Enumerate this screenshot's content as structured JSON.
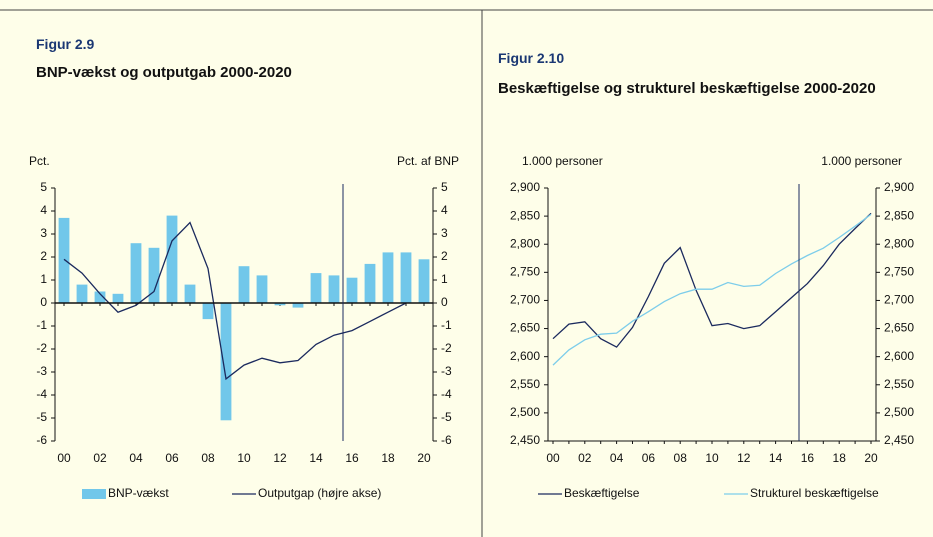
{
  "chart_data": [
    {
      "type": "bar_line",
      "figure": "Figur 2.9",
      "title": "BNP-vækst og outputgab 2000-2020",
      "y_label": "Pct.",
      "y2_label": "Pct. af BNP",
      "categories": [
        "00",
        null,
        "02",
        null,
        "04",
        null,
        "06",
        null,
        "08",
        null,
        "10",
        null,
        "12",
        null,
        "14",
        null,
        "16",
        null,
        "18",
        null,
        "20"
      ],
      "series": [
        {
          "name": "BNP-vækst",
          "kind": "bar",
          "color": "#71c7ea",
          "values": [
            3.7,
            0.8,
            0.5,
            0.4,
            2.6,
            2.4,
            3.8,
            0.8,
            -0.7,
            -5.1,
            1.6,
            1.2,
            -0.1,
            -0.2,
            1.3,
            1.2,
            1.1,
            1.7,
            2.2,
            2.2,
            1.9
          ]
        },
        {
          "name": "Outputgap (højre akse)",
          "kind": "line",
          "axis": "y2",
          "color": "#1b2a5e",
          "values": [
            1.9,
            1.3,
            0.4,
            -0.4,
            -0.1,
            0.5,
            2.7,
            3.5,
            1.5,
            -3.3,
            -2.7,
            -2.4,
            -2.6,
            -2.5,
            -1.8,
            -1.4,
            -1.2,
            -0.8,
            -0.4,
            0.0,
            null
          ]
        }
      ],
      "ylim": [
        -6,
        5
      ],
      "yticks": [
        -6,
        -5,
        -4,
        -3,
        -2,
        -1,
        0,
        1,
        2,
        3,
        4,
        5
      ],
      "y2lim": [
        -6,
        5
      ],
      "y2ticks": [
        -6,
        -5,
        -4,
        -3,
        -2,
        -1,
        0,
        1,
        2,
        3,
        4,
        5
      ]
    },
    {
      "type": "line",
      "figure": "Figur 2.10",
      "title": "Beskæftigelse og strukturel beskæftigelse 2000-2020",
      "y_label": "1.000 personer",
      "y2_label": "1.000 personer",
      "categories": [
        "00",
        null,
        "02",
        null,
        "04",
        null,
        "06",
        null,
        "08",
        null,
        "10",
        null,
        "12",
        null,
        "14",
        null,
        "16",
        null,
        "18",
        null,
        "20"
      ],
      "series": [
        {
          "name": "Beskæftigelse",
          "kind": "line",
          "color": "#1b2a5e",
          "values": [
            2632,
            2658,
            2662,
            2632,
            2617,
            2652,
            2707,
            2766,
            2794,
            2718,
            2655,
            2659,
            2650,
            2655,
            2680,
            2705,
            2730,
            2762,
            2800,
            2828,
            2855
          ]
        },
        {
          "name": "Strukturel beskæftigelse",
          "kind": "line",
          "color": "#7dcdea",
          "values": [
            2585,
            2612,
            2630,
            2640,
            2642,
            2663,
            2680,
            2698,
            2712,
            2720,
            2720,
            2732,
            2725,
            2727,
            2748,
            2765,
            2780,
            2793,
            2812,
            2832,
            2853
          ]
        }
      ],
      "ylim": [
        2450,
        2900
      ],
      "yticks": [
        {
          "value": 2450,
          "label": "2,450"
        },
        {
          "value": 2500,
          "label": "2,500"
        },
        {
          "value": 2550,
          "label": "2,550"
        },
        {
          "value": 2600,
          "label": "2,600"
        },
        {
          "value": 2650,
          "label": "2,650"
        },
        {
          "value": 2700,
          "label": "2,700"
        },
        {
          "value": 2750,
          "label": "2,750"
        },
        {
          "value": 2800,
          "label": "2,800"
        },
        {
          "value": 2850,
          "label": "2,850"
        },
        {
          "value": 2900,
          "label": "2,900"
        }
      ],
      "y2lim": [
        2450,
        2900
      ],
      "y2ticks": [
        {
          "value": 2450,
          "label": "2,450"
        },
        {
          "value": 2500,
          "label": "2,500"
        },
        {
          "value": 2550,
          "label": "2,550"
        },
        {
          "value": 2600,
          "label": "2,600"
        },
        {
          "value": 2650,
          "label": "2,650"
        },
        {
          "value": 2700,
          "label": "2,700"
        },
        {
          "value": 2750,
          "label": "2,750"
        },
        {
          "value": 2800,
          "label": "2,800"
        },
        {
          "value": 2850,
          "label": "2,850"
        },
        {
          "value": 2900,
          "label": "2,900"
        }
      ]
    }
  ]
}
